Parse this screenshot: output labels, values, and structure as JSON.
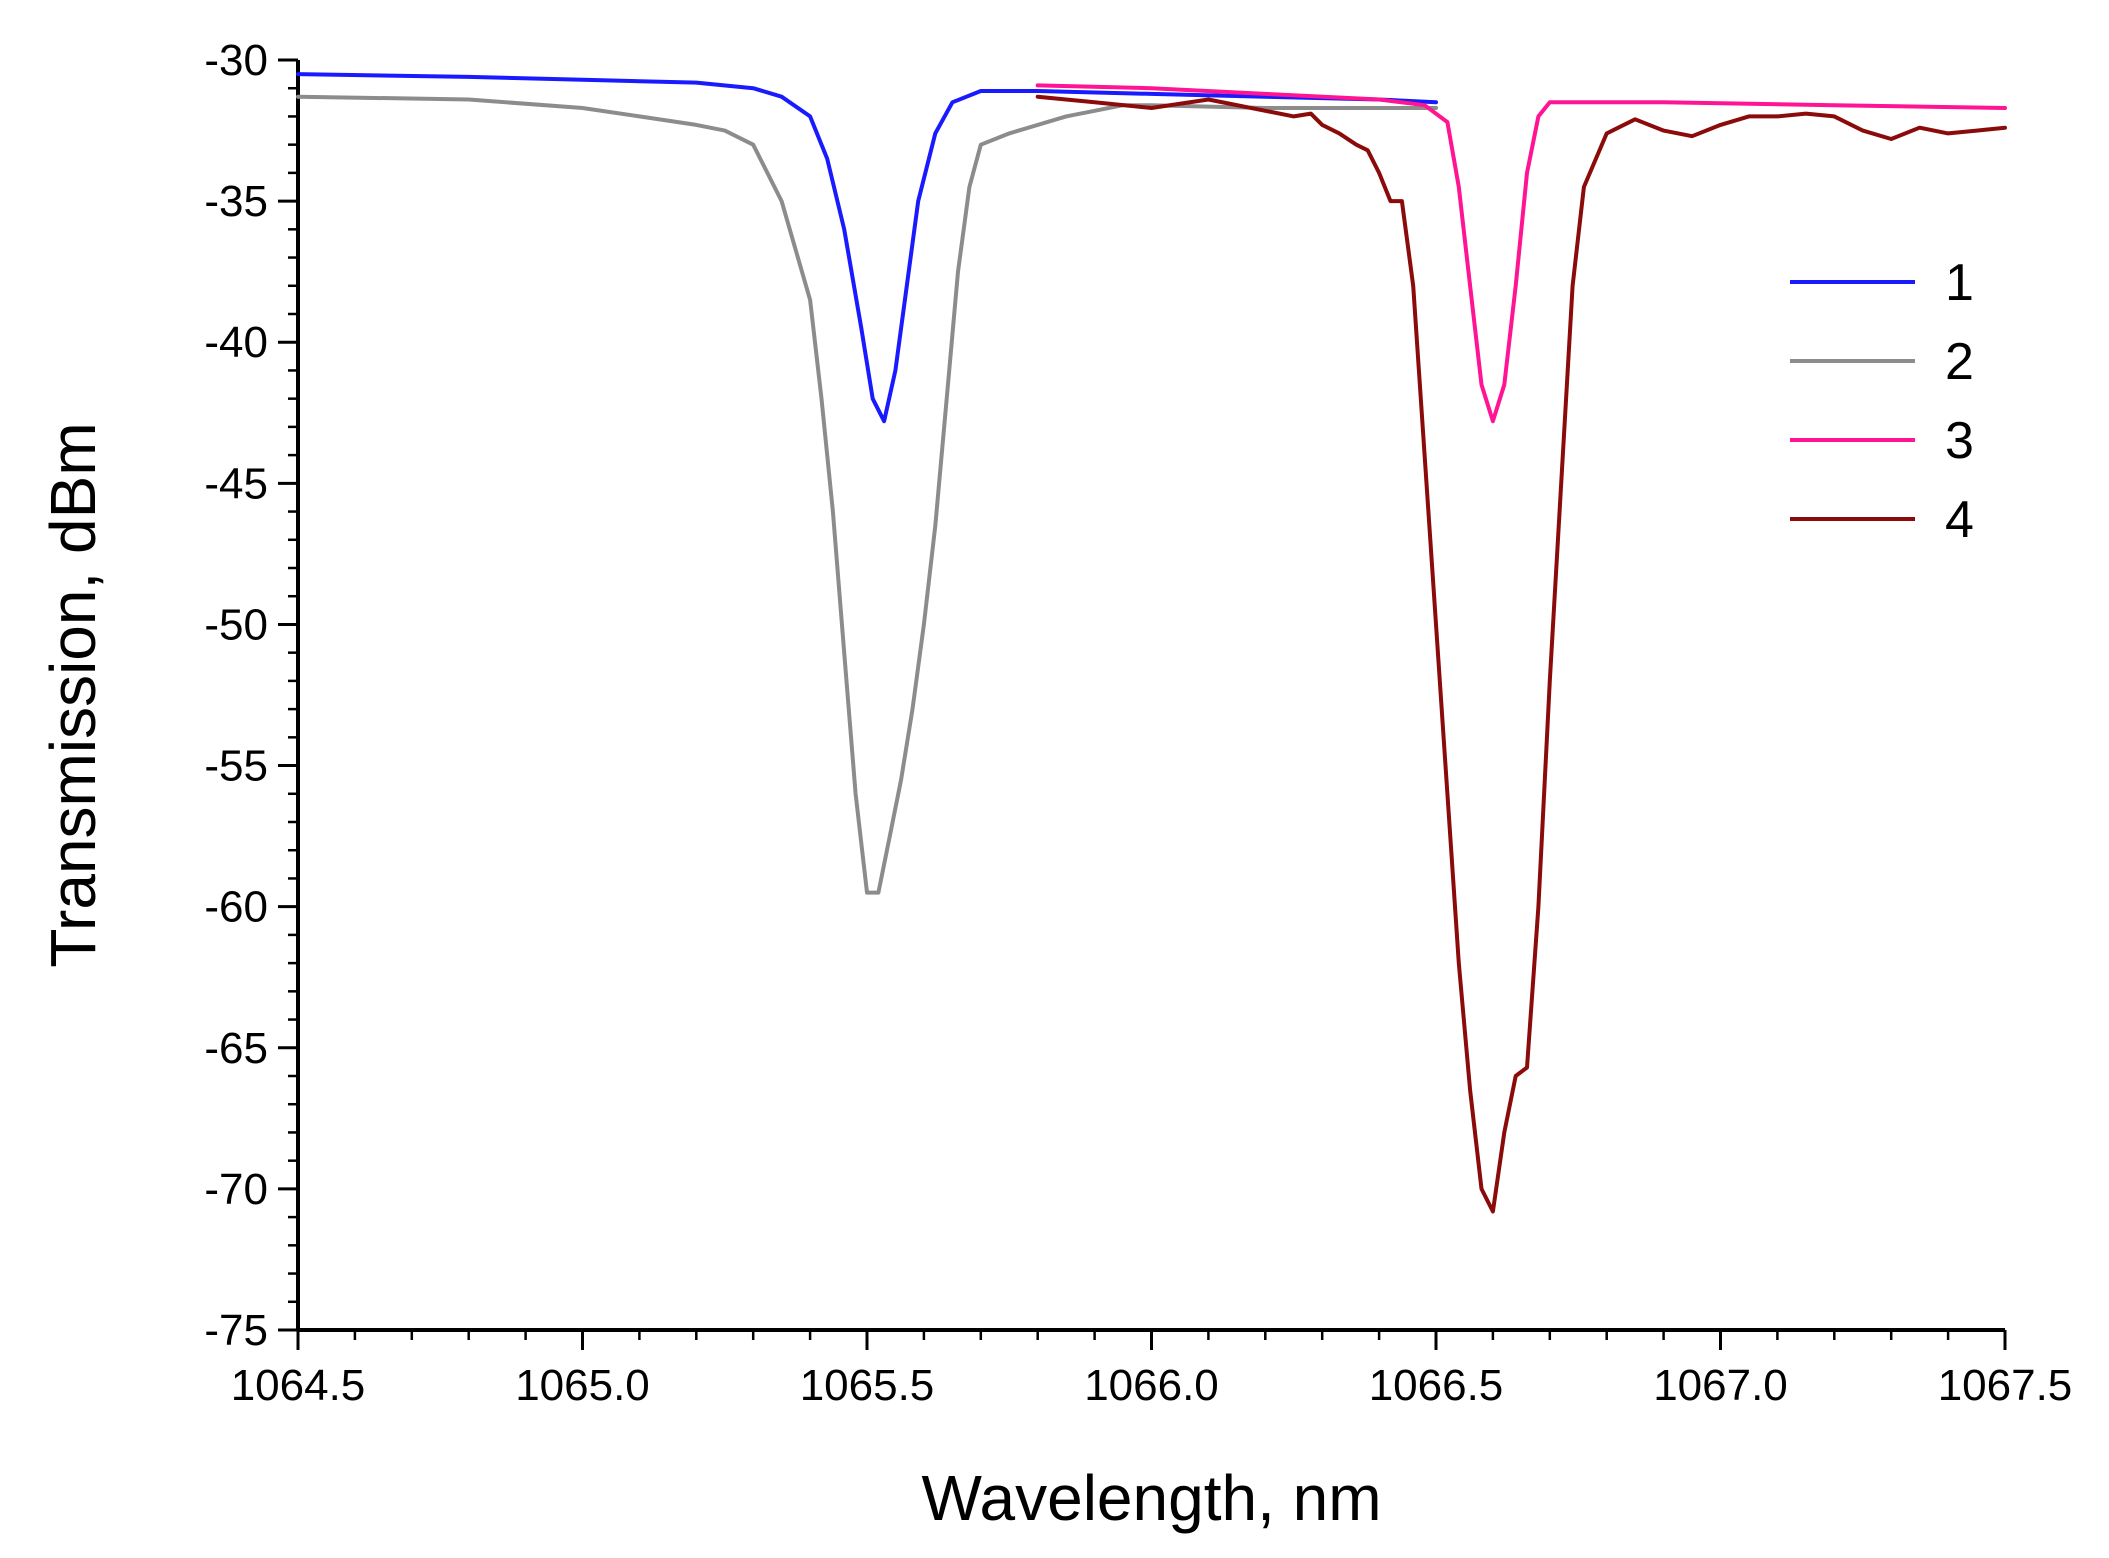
{
  "chart_data": {
    "type": "line",
    "title": "",
    "xlabel": "Wavelength, nm",
    "ylabel": "Transmission, dBm",
    "xlim": [
      1064.5,
      1067.5
    ],
    "ylim": [
      -75,
      -30
    ],
    "x_ticks": [
      1064.5,
      1065.0,
      1065.5,
      1066.0,
      1066.5,
      1067.0,
      1067.5
    ],
    "x_tick_labels": [
      "1064.5",
      "1065.0",
      "1065.5",
      "1066.0",
      "1066.5",
      "1067.0",
      "1067.5"
    ],
    "y_ticks": [
      -30,
      -35,
      -40,
      -45,
      -50,
      -55,
      -60,
      -65,
      -70,
      -75
    ],
    "y_tick_labels": [
      "-30",
      "-35",
      "-40",
      "-45",
      "-50",
      "-55",
      "-60",
      "-65",
      "-70",
      "-75"
    ],
    "grid": false,
    "legend_position": "right",
    "series": [
      {
        "name": "1",
        "color": "#1a1aff",
        "x": [
          1064.5,
          1064.8,
          1065.0,
          1065.2,
          1065.3,
          1065.35,
          1065.4,
          1065.43,
          1065.46,
          1065.49,
          1065.51,
          1065.53,
          1065.55,
          1065.57,
          1065.59,
          1065.62,
          1065.65,
          1065.7,
          1065.8,
          1066.0,
          1066.2,
          1066.4,
          1066.5
        ],
        "y": [
          -30.5,
          -30.6,
          -30.7,
          -30.8,
          -31.0,
          -31.3,
          -32.0,
          -33.5,
          -36.0,
          -39.5,
          -42.0,
          -42.8,
          -41.0,
          -38.0,
          -35.0,
          -32.6,
          -31.5,
          -31.1,
          -31.1,
          -31.2,
          -31.3,
          -31.4,
          -31.5
        ]
      },
      {
        "name": "2",
        "color": "#8c8c8c",
        "x": [
          1064.5,
          1064.8,
          1065.0,
          1065.1,
          1065.2,
          1065.25,
          1065.3,
          1065.35,
          1065.4,
          1065.42,
          1065.44,
          1065.46,
          1065.48,
          1065.5,
          1065.52,
          1065.54,
          1065.56,
          1065.58,
          1065.6,
          1065.62,
          1065.64,
          1065.66,
          1065.68,
          1065.7,
          1065.75,
          1065.85,
          1065.95,
          1066.0,
          1066.2,
          1066.5
        ],
        "y": [
          -31.3,
          -31.4,
          -31.7,
          -32.0,
          -32.3,
          -32.5,
          -33.0,
          -35.0,
          -38.5,
          -42.0,
          -46.0,
          -51.0,
          -56.0,
          -59.5,
          -59.5,
          -57.5,
          -55.5,
          -53.0,
          -50.0,
          -46.5,
          -42.0,
          -37.5,
          -34.5,
          -33.0,
          -32.6,
          -32.0,
          -31.6,
          -31.6,
          -31.7,
          -31.7
        ]
      },
      {
        "name": "3",
        "color": "#ff1493",
        "x": [
          1065.8,
          1066.0,
          1066.2,
          1066.4,
          1066.48,
          1066.52,
          1066.54,
          1066.56,
          1066.58,
          1066.6,
          1066.62,
          1066.64,
          1066.66,
          1066.68,
          1066.7,
          1066.75,
          1066.9,
          1067.2,
          1067.5
        ],
        "y": [
          -30.9,
          -31.0,
          -31.2,
          -31.4,
          -31.6,
          -32.2,
          -34.5,
          -38.0,
          -41.5,
          -42.8,
          -41.5,
          -38.0,
          -34.0,
          -32.0,
          -31.5,
          -31.5,
          -31.5,
          -31.6,
          -31.7
        ]
      },
      {
        "name": "4",
        "color": "#8b0a0a",
        "x": [
          1065.8,
          1065.9,
          1066.0,
          1066.1,
          1066.2,
          1066.25,
          1066.28,
          1066.3,
          1066.33,
          1066.36,
          1066.38,
          1066.4,
          1066.42,
          1066.44,
          1066.46,
          1066.48,
          1066.5,
          1066.52,
          1066.54,
          1066.56,
          1066.58,
          1066.6,
          1066.62,
          1066.64,
          1066.66,
          1066.68,
          1066.7,
          1066.72,
          1066.74,
          1066.76,
          1066.8,
          1066.85,
          1066.9,
          1066.95,
          1067.0,
          1067.05,
          1067.1,
          1067.15,
          1067.2,
          1067.25,
          1067.3,
          1067.35,
          1067.4,
          1067.45,
          1067.5
        ],
        "y": [
          -31.3,
          -31.5,
          -31.7,
          -31.4,
          -31.8,
          -32.0,
          -31.9,
          -32.3,
          -32.6,
          -33.0,
          -33.2,
          -34.0,
          -35.0,
          -35.0,
          -38.0,
          -44.0,
          -50.0,
          -56.0,
          -62.0,
          -66.5,
          -70.0,
          -70.8,
          -68.0,
          -66.0,
          -65.7,
          -60.0,
          -52.0,
          -45.0,
          -38.0,
          -34.5,
          -32.6,
          -32.1,
          -32.5,
          -32.7,
          -32.3,
          -32.0,
          -32.0,
          -31.9,
          -32.0,
          -32.5,
          -32.8,
          -32.4,
          -32.6,
          -32.5,
          -32.4
        ]
      }
    ]
  }
}
